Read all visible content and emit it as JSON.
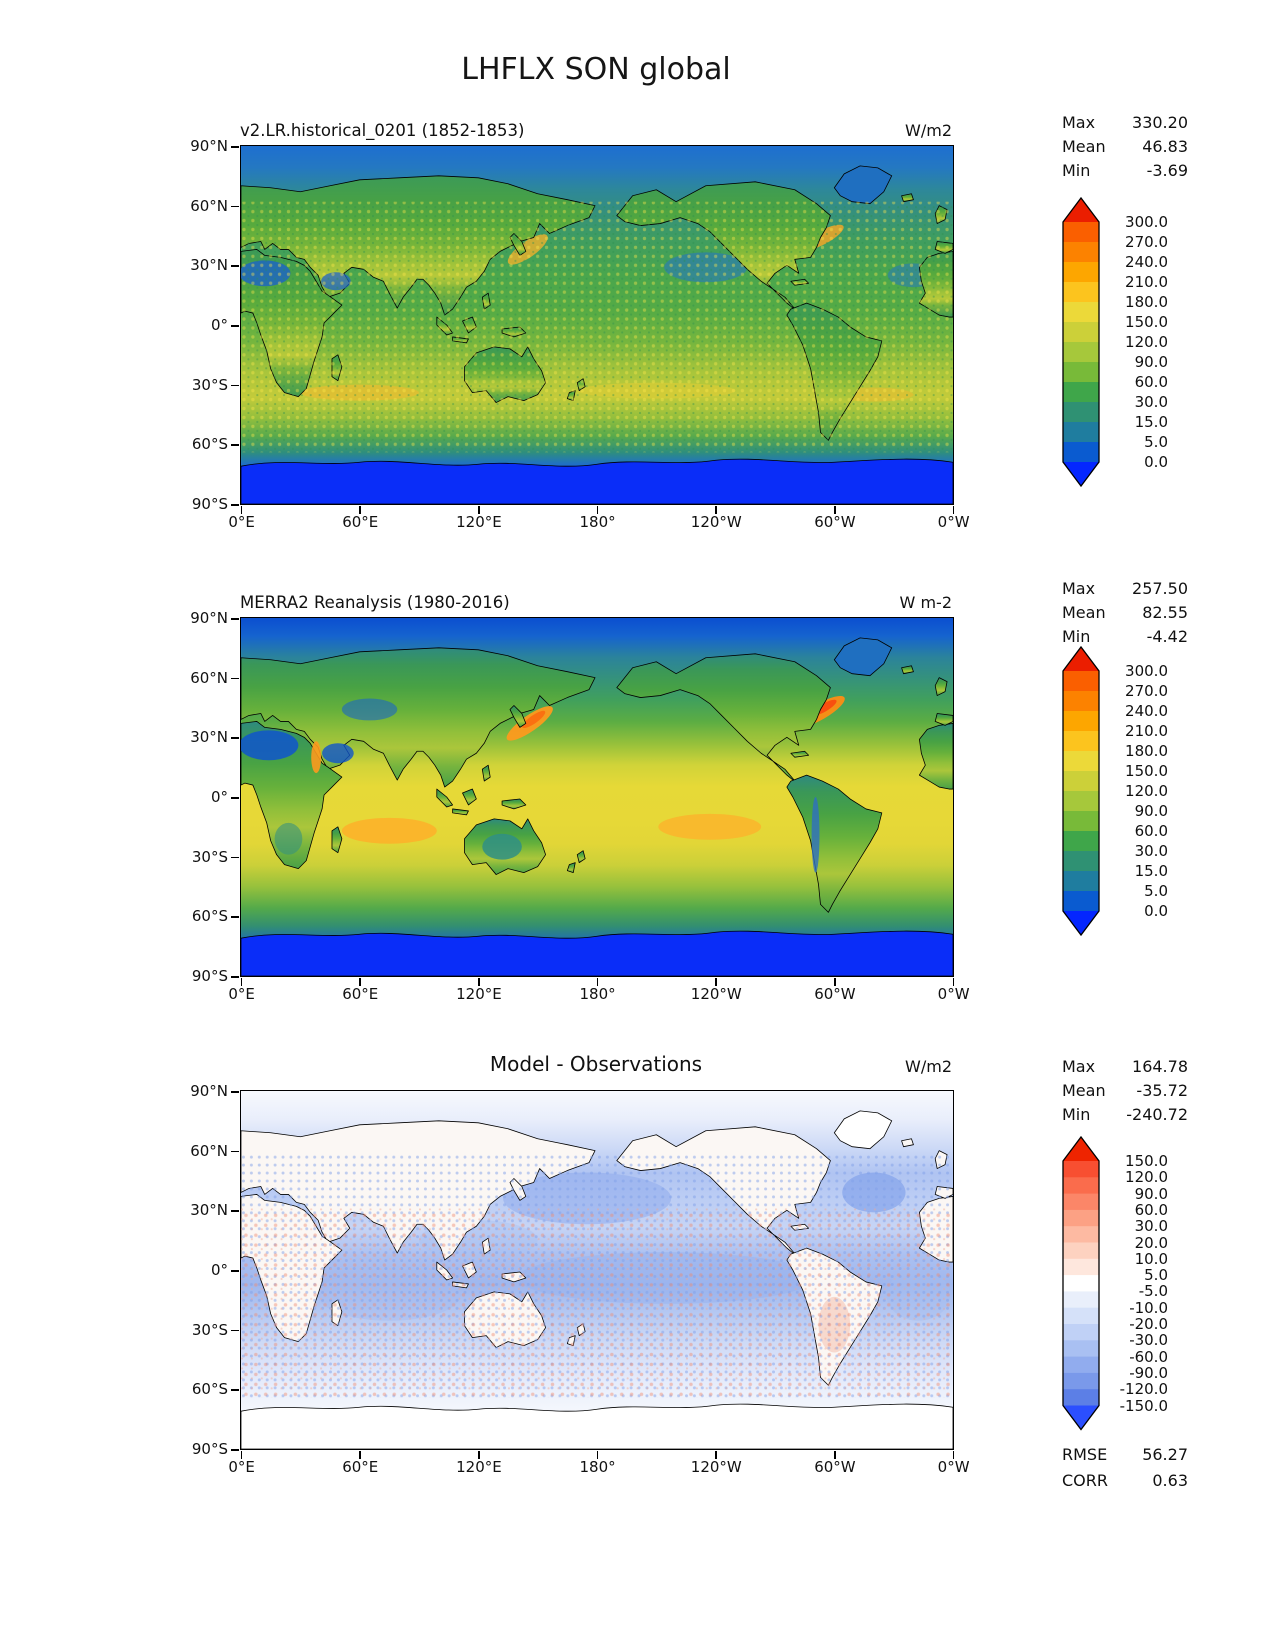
{
  "figure": {
    "title": "LHFLX SON global"
  },
  "axes": {
    "lat_ticks": [
      "90°N",
      "60°N",
      "30°N",
      "0°",
      "30°S",
      "60°S",
      "90°S"
    ],
    "lon_ticks": [
      "0°E",
      "60°E",
      "120°E",
      "180°",
      "120°W",
      "60°W",
      "0°W"
    ]
  },
  "panels": [
    {
      "id": "model",
      "title": "v2.LR.historical_0201 (1852-1853)",
      "units": "W/m2",
      "stats": [
        {
          "label": "Max",
          "value": "330.20"
        },
        {
          "label": "Mean",
          "value": "46.83"
        },
        {
          "label": "Min",
          "value": "-3.69"
        }
      ],
      "colorbar": {
        "ticks": [
          "300.0",
          "270.0",
          "240.0",
          "210.0",
          "180.0",
          "150.0",
          "120.0",
          "90.0",
          "60.0",
          "30.0",
          "15.0",
          "5.0",
          "0.0"
        ],
        "colors": [
          "#fa5f00",
          "#fc8200",
          "#fda600",
          "#fcc41e",
          "#ecd939",
          "#ccd039",
          "#a6c83b",
          "#78ba39",
          "#3fa64a",
          "#2f9173",
          "#1f7d9f",
          "#0a5bd0"
        ],
        "over": "#eb1e00",
        "under": "#0426ff"
      }
    },
    {
      "id": "reanalysis",
      "title": "MERRA2 Reanalysis (1980-2016)",
      "units": "W m-2",
      "stats": [
        {
          "label": "Max",
          "value": "257.50"
        },
        {
          "label": "Mean",
          "value": "82.55"
        },
        {
          "label": "Min",
          "value": "-4.42"
        }
      ],
      "colorbar": {
        "ticks": [
          "300.0",
          "270.0",
          "240.0",
          "210.0",
          "180.0",
          "150.0",
          "120.0",
          "90.0",
          "60.0",
          "30.0",
          "15.0",
          "5.0",
          "0.0"
        ],
        "colors": [
          "#fa5f00",
          "#fc8200",
          "#fda600",
          "#fcc41e",
          "#ecd939",
          "#ccd039",
          "#a6c83b",
          "#78ba39",
          "#3fa64a",
          "#2f9173",
          "#1f7d9f",
          "#0a5bd0"
        ],
        "over": "#eb1e00",
        "under": "#0426ff"
      }
    },
    {
      "id": "difference",
      "title": "Model - Observations",
      "units": "W/m2",
      "stats": [
        {
          "label": "Max",
          "value": "164.78"
        },
        {
          "label": "Mean",
          "value": "-35.72"
        },
        {
          "label": "Min",
          "value": "-240.72"
        }
      ],
      "colorbar": {
        "ticks": [
          "150.0",
          "120.0",
          "90.0",
          "60.0",
          "30.0",
          "20.0",
          "10.0",
          "5.0",
          "-5.0",
          "-10.0",
          "-20.0",
          "-30.0",
          "-60.0",
          "-90.0",
          "-120.0",
          "-150.0"
        ],
        "colors": [
          "#f84f31",
          "#fa6c4c",
          "#fb8668",
          "#fca184",
          "#fdbaa2",
          "#fdd2c0",
          "#fee7dd",
          "#ffffff",
          "#e9effb",
          "#d5e1f9",
          "#c0d1f6",
          "#a9c0f2",
          "#91acee",
          "#7a99ea",
          "#5c7fe6"
        ],
        "over": "#ee2400",
        "under": "#2b4fff"
      },
      "metrics": [
        {
          "label": "RMSE",
          "value": "56.27"
        },
        {
          "label": "CORR",
          "value": "0.63"
        }
      ]
    }
  ],
  "chart_data": [
    {
      "type": "heatmap",
      "title": "v2.LR.historical_0201 (1852-1853)",
      "units": "W/m2",
      "x_ticks": [
        "0°E",
        "60°E",
        "120°E",
        "180°",
        "120°W",
        "60°W",
        "0°W"
      ],
      "y_ticks": [
        "90°N",
        "60°N",
        "30°N",
        "0°",
        "30°S",
        "60°S",
        "90°S"
      ],
      "colorbar_levels": [
        0,
        5,
        15,
        30,
        60,
        90,
        120,
        150,
        180,
        210,
        240,
        270,
        300
      ],
      "stats": {
        "max": 330.2,
        "mean": 46.83,
        "min": -3.69
      }
    },
    {
      "type": "heatmap",
      "title": "MERRA2 Reanalysis (1980-2016)",
      "units": "W m-2",
      "x_ticks": [
        "0°E",
        "60°E",
        "120°E",
        "180°",
        "120°W",
        "60°W",
        "0°W"
      ],
      "y_ticks": [
        "90°N",
        "60°N",
        "30°N",
        "0°",
        "30°S",
        "60°S",
        "90°S"
      ],
      "colorbar_levels": [
        0,
        5,
        15,
        30,
        60,
        90,
        120,
        150,
        180,
        210,
        240,
        270,
        300
      ],
      "stats": {
        "max": 257.5,
        "mean": 82.55,
        "min": -4.42
      }
    },
    {
      "type": "heatmap",
      "title": "Model - Observations",
      "units": "W/m2",
      "x_ticks": [
        "0°E",
        "60°E",
        "120°E",
        "180°",
        "120°W",
        "60°W",
        "0°W"
      ],
      "y_ticks": [
        "90°N",
        "60°N",
        "30°N",
        "0°",
        "30°S",
        "60°S",
        "90°S"
      ],
      "colorbar_levels": [
        -150,
        -120,
        -90,
        -60,
        -30,
        -20,
        -10,
        -5,
        5,
        10,
        20,
        30,
        60,
        90,
        120,
        150
      ],
      "stats": {
        "max": 164.78,
        "mean": -35.72,
        "min": -240.72,
        "rmse": 56.27,
        "corr": 0.63
      }
    }
  ]
}
